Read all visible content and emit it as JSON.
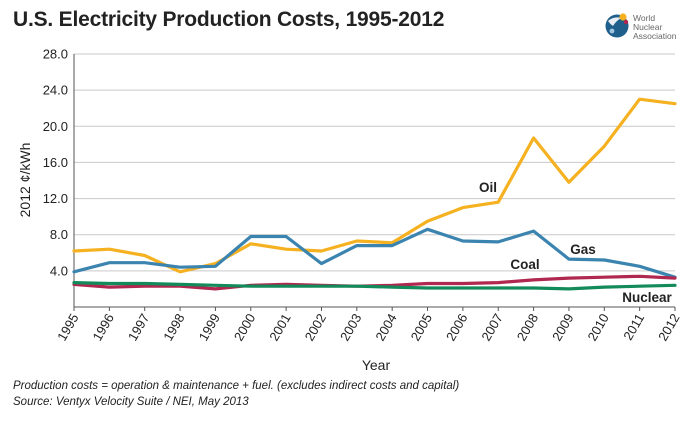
{
  "header": {
    "title": "U.S. Electricity Production Costs, 1995-2012"
  },
  "logo": {
    "org_name": "World\nNuclear\nAssociation",
    "icon": "globe-logo-icon"
  },
  "footnotes": {
    "note": "Production costs = operation & maintenance + fuel. (excludes indirect costs and capital)",
    "source": "Source: Ventyx Velocity Suite / NEI, May 2013"
  },
  "chart_data": {
    "type": "line",
    "title": "U.S. Electricity Production Costs, 1995-2012",
    "xlabel": "Year",
    "ylabel": "2012 ¢/kWh",
    "x": [
      "1995",
      "1996",
      "1997",
      "1998",
      "1999",
      "2000",
      "2001",
      "2002",
      "2003",
      "2004",
      "2005",
      "2006",
      "2007",
      "2008",
      "2009",
      "2010",
      "2011",
      "2012"
    ],
    "ylim": [
      0,
      28
    ],
    "yticks": [
      "4.0",
      "8.0",
      "12.0",
      "16.0",
      "20.0",
      "24.0",
      "28.0"
    ],
    "grid": true,
    "series": [
      {
        "name": "Oil",
        "color": "#F5B120",
        "values": [
          6.2,
          6.4,
          5.7,
          3.9,
          4.8,
          7.0,
          6.4,
          6.2,
          7.3,
          7.1,
          9.5,
          11.0,
          11.6,
          18.7,
          13.8,
          17.8,
          23.0,
          22.5
        ]
      },
      {
        "name": "Gas",
        "color": "#3B84B0",
        "values": [
          3.9,
          4.9,
          4.9,
          4.4,
          4.5,
          7.8,
          7.8,
          4.8,
          6.8,
          6.8,
          8.6,
          7.3,
          7.2,
          8.4,
          5.3,
          5.2,
          4.5,
          3.3
        ]
      },
      {
        "name": "Coal",
        "color": "#B0274F",
        "values": [
          2.5,
          2.2,
          2.3,
          2.3,
          2.0,
          2.4,
          2.5,
          2.4,
          2.3,
          2.4,
          2.6,
          2.6,
          2.7,
          3.0,
          3.2,
          3.3,
          3.4,
          3.2
        ]
      },
      {
        "name": "Nuclear",
        "color": "#138A5A",
        "values": [
          2.7,
          2.6,
          2.6,
          2.5,
          2.4,
          2.3,
          2.3,
          2.3,
          2.3,
          2.2,
          2.1,
          2.1,
          2.1,
          2.1,
          2.0,
          2.2,
          2.3,
          2.4
        ]
      }
    ]
  }
}
